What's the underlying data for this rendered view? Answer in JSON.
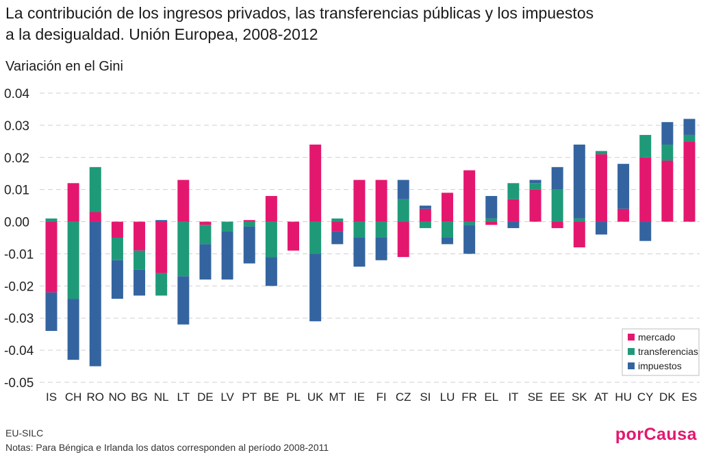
{
  "title": "La contribución de los ingresos privados, las transferencias públicas y los impuestos\na la desigualdad. Unión Europea, 2008-2012",
  "ylabel": "Variación en el Gini",
  "source": "EU-SILC",
  "note": "Notas: Para Béngica e Irlanda los datos corresponden al período 2008-2011",
  "brand": "porCausa",
  "chart_data": {
    "type": "bar",
    "stacked": true,
    "ylim": [
      -0.05,
      0.04
    ],
    "yticks": [
      {
        "value": 0.04,
        "label": "0.04"
      },
      {
        "value": 0.03,
        "label": "0.03"
      },
      {
        "value": 0.02,
        "label": "0.02"
      },
      {
        "value": 0.01,
        "label": "0.01"
      },
      {
        "value": 0.0,
        "label": "0.00"
      },
      {
        "value": -0.01,
        "label": "-0.01"
      },
      {
        "value": -0.02,
        "label": "-0.02"
      },
      {
        "value": -0.03,
        "label": "-0.03"
      },
      {
        "value": -0.04,
        "label": "-0.04"
      },
      {
        "value": -0.05,
        "label": "-0.05"
      }
    ],
    "grid": true,
    "legend_position": "bottom-right",
    "categories": [
      "IS",
      "CH",
      "RO",
      "NO",
      "BG",
      "NL",
      "LT",
      "DE",
      "LV",
      "PT",
      "BE",
      "PL",
      "UK",
      "MT",
      "IE",
      "FI",
      "CZ",
      "SI",
      "LU",
      "FR",
      "EL",
      "IT",
      "SE",
      "EE",
      "SK",
      "AT",
      "HU",
      "CY",
      "DK",
      "ES"
    ],
    "series": [
      {
        "name": "mercado",
        "color": "#e4176f",
        "values": [
          -0.022,
          0.012,
          0.003,
          -0.005,
          -0.009,
          -0.016,
          0.013,
          -0.001,
          0.0,
          0.0005,
          0.008,
          -0.009,
          0.024,
          -0.003,
          0.013,
          0.013,
          -0.011,
          0.004,
          0.009,
          0.016,
          -0.001,
          0.007,
          0.01,
          -0.002,
          -0.008,
          0.021,
          0.004,
          0.02,
          0.019,
          0.025
        ]
      },
      {
        "name": "transferencias",
        "color": "#1f9a78",
        "values": [
          0.001,
          -0.024,
          0.014,
          -0.007,
          -0.006,
          -0.007,
          -0.017,
          -0.006,
          -0.003,
          -0.0015,
          -0.011,
          0.0,
          -0.01,
          0.001,
          -0.005,
          -0.005,
          0.007,
          -0.002,
          -0.005,
          -0.001,
          0.001,
          0.005,
          0.002,
          0.01,
          0.001,
          0.001,
          0.0,
          0.007,
          0.005,
          0.002
        ]
      },
      {
        "name": "impuestos",
        "color": "#3464a0",
        "values": [
          -0.012,
          -0.019,
          -0.045,
          -0.012,
          -0.008,
          0.0005,
          -0.015,
          -0.011,
          -0.015,
          -0.0115,
          -0.009,
          0.0,
          -0.021,
          -0.004,
          -0.009,
          -0.007,
          0.006,
          0.001,
          -0.002,
          -0.009,
          0.007,
          -0.002,
          0.001,
          0.007,
          0.023,
          -0.004,
          0.014,
          -0.006,
          0.007,
          0.005
        ]
      }
    ]
  }
}
